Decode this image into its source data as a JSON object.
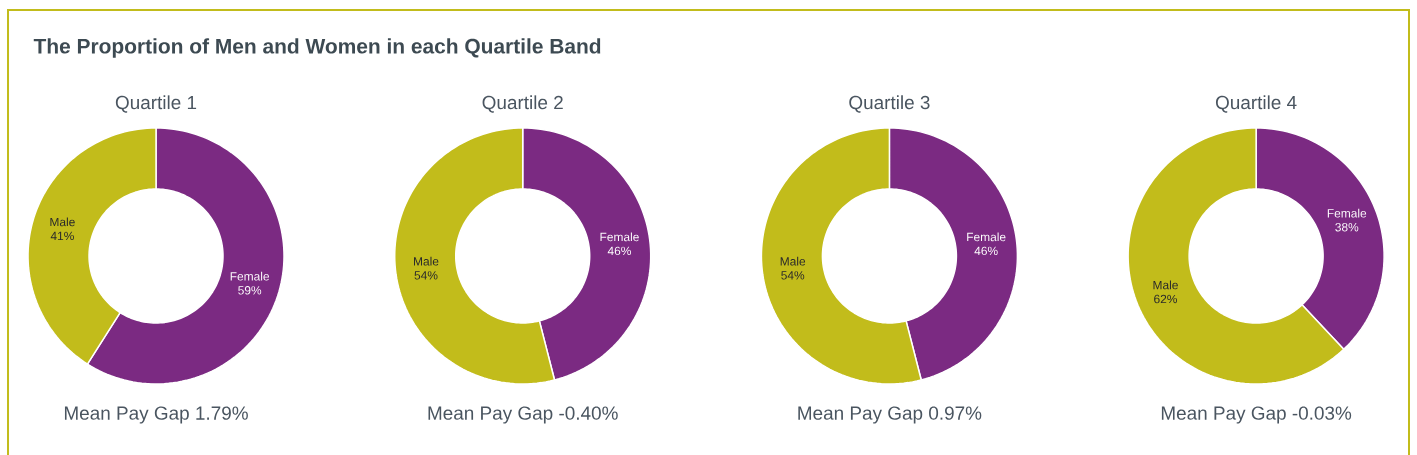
{
  "chart_data": [
    {
      "type": "other",
      "title": "The Proportion of Men and Women in each Quartile Band"
    },
    {
      "type": "donut",
      "title": "Quartile 1",
      "categories": [
        "Female",
        "Male"
      ],
      "values": [
        59,
        41
      ],
      "colors": [
        "#7b2a82",
        "#c2bc1b"
      ],
      "value_labels": [
        "59%",
        "41%"
      ],
      "annotations": [
        "Mean Pay Gap 1.79%"
      ]
    },
    {
      "type": "donut",
      "title": "Quartile 2",
      "categories": [
        "Female",
        "Male"
      ],
      "values": [
        46,
        54
      ],
      "colors": [
        "#7b2a82",
        "#c2bc1b"
      ],
      "value_labels": [
        "46%",
        "54%"
      ],
      "annotations": [
        "Mean Pay Gap -0.40%"
      ]
    },
    {
      "type": "donut",
      "title": "Quartile 3",
      "categories": [
        "Female",
        "Male"
      ],
      "values": [
        46,
        54
      ],
      "colors": [
        "#7b2a82",
        "#c2bc1b"
      ],
      "value_labels": [
        "46%",
        "54%"
      ],
      "annotations": [
        "Mean Pay Gap 0.97%"
      ]
    },
    {
      "type": "donut",
      "title": "Quartile 4",
      "categories": [
        "Female",
        "Male"
      ],
      "values": [
        38,
        62
      ],
      "colors": [
        "#7b2a82",
        "#c2bc1b"
      ],
      "value_labels": [
        "38%",
        "62%"
      ],
      "annotations": [
        "Mean Pay Gap -0.03%"
      ]
    }
  ]
}
